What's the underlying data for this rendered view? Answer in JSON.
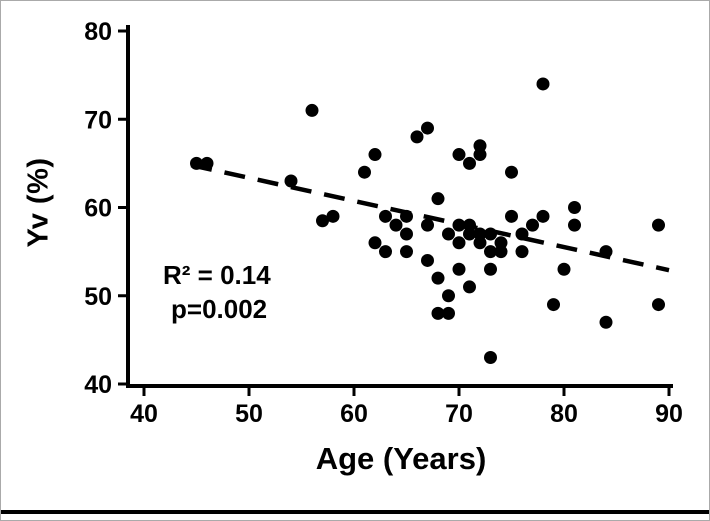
{
  "chart_data": {
    "type": "scatter",
    "title": "",
    "xlabel": "Age (Years)",
    "ylabel": "Yv (%)",
    "xlim": [
      40,
      90
    ],
    "ylim": [
      40,
      80
    ],
    "xticks": [
      40,
      50,
      60,
      70,
      80,
      90
    ],
    "yticks": [
      40,
      50,
      60,
      70,
      80
    ],
    "grid": false,
    "legend": "none",
    "marker_color": "#000000",
    "annotation": {
      "r2": "R² = 0.14",
      "p": "p=0.002"
    },
    "trendline": {
      "style": "dashed",
      "x1": 44.5,
      "y1": 64.8,
      "x2": 90.0,
      "y2": 52.9
    },
    "points": [
      [
        45,
        65
      ],
      [
        46,
        65
      ],
      [
        54,
        63
      ],
      [
        56,
        71
      ],
      [
        57,
        58.5
      ],
      [
        58,
        59
      ],
      [
        61,
        64
      ],
      [
        62,
        66
      ],
      [
        62,
        56
      ],
      [
        63,
        59
      ],
      [
        63,
        55
      ],
      [
        64,
        58
      ],
      [
        65,
        59
      ],
      [
        65,
        57
      ],
      [
        65,
        55
      ],
      [
        66,
        68
      ],
      [
        67,
        69
      ],
      [
        67,
        58
      ],
      [
        67,
        54
      ],
      [
        68,
        61
      ],
      [
        68,
        52
      ],
      [
        68,
        48
      ],
      [
        69,
        57
      ],
      [
        69,
        50
      ],
      [
        69,
        48
      ],
      [
        70,
        66
      ],
      [
        70,
        58
      ],
      [
        70,
        56
      ],
      [
        70,
        53
      ],
      [
        71,
        65
      ],
      [
        71,
        58
      ],
      [
        71,
        57
      ],
      [
        71,
        51
      ],
      [
        72,
        67
      ],
      [
        72,
        66
      ],
      [
        72,
        57
      ],
      [
        72,
        56
      ],
      [
        73,
        57
      ],
      [
        73,
        55
      ],
      [
        73,
        53
      ],
      [
        73,
        43
      ],
      [
        74,
        56
      ],
      [
        74,
        55
      ],
      [
        75,
        64
      ],
      [
        75,
        59
      ],
      [
        76,
        57
      ],
      [
        76,
        55
      ],
      [
        77,
        58
      ],
      [
        78,
        74
      ],
      [
        78,
        59
      ],
      [
        79,
        49
      ],
      [
        80,
        53
      ],
      [
        81,
        60
      ],
      [
        81,
        58
      ],
      [
        84,
        55
      ],
      [
        84,
        47
      ],
      [
        89,
        58
      ],
      [
        89,
        49
      ]
    ]
  }
}
